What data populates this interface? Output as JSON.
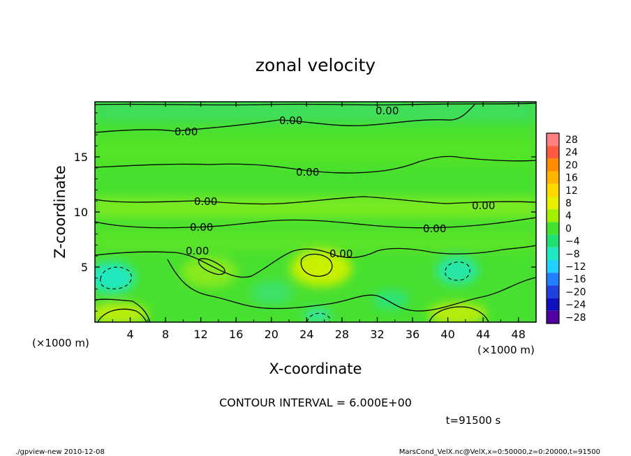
{
  "chart_data": {
    "type": "heatmap",
    "title": "zonal velocity",
    "xlabel": "X-coordinate",
    "ylabel": "Z-coordinate",
    "x_unit_left": "(×1000 m)",
    "x_unit_right": "(×1000 m)",
    "xlim": [
      0,
      50
    ],
    "ylim": [
      0,
      20
    ],
    "x_ticks": [
      4,
      8,
      12,
      16,
      20,
      24,
      28,
      32,
      36,
      40,
      44,
      48
    ],
    "y_ticks": [
      5,
      10,
      15
    ],
    "x_tick_labels": [
      "4",
      "8",
      "12",
      "16",
      "20",
      "24",
      "28",
      "32",
      "36",
      "40",
      "44",
      "48"
    ],
    "y_tick_labels": [
      "5",
      "10",
      "15"
    ],
    "colorbar": {
      "labels": [
        "28",
        "24",
        "20",
        "16",
        "12",
        "8",
        "4",
        "0",
        "−4",
        "−8",
        "−12",
        "−16",
        "−20",
        "−24",
        "−28"
      ],
      "colors": [
        "#ff8080",
        "#ff5a40",
        "#ff8c00",
        "#ffb400",
        "#ffd800",
        "#e8f000",
        "#a0f000",
        "#46e030",
        "#20e070",
        "#20e8c0",
        "#20d0ff",
        "#2080ff",
        "#2040e0",
        "#1010c0",
        "#5000a0"
      ]
    },
    "contour_label": "0.00",
    "contour_interval_text": "CONTOUR INTERVAL = 6.000E+00",
    "time_text": "t=91500 s",
    "dominant_value_range": [
      -8,
      8
    ]
  },
  "footer": {
    "left": "./gpview-new  2010-12-08",
    "right": "MarsCond_VelX.nc@VelX,x=0:50000,z=0:20000,t=91500"
  }
}
